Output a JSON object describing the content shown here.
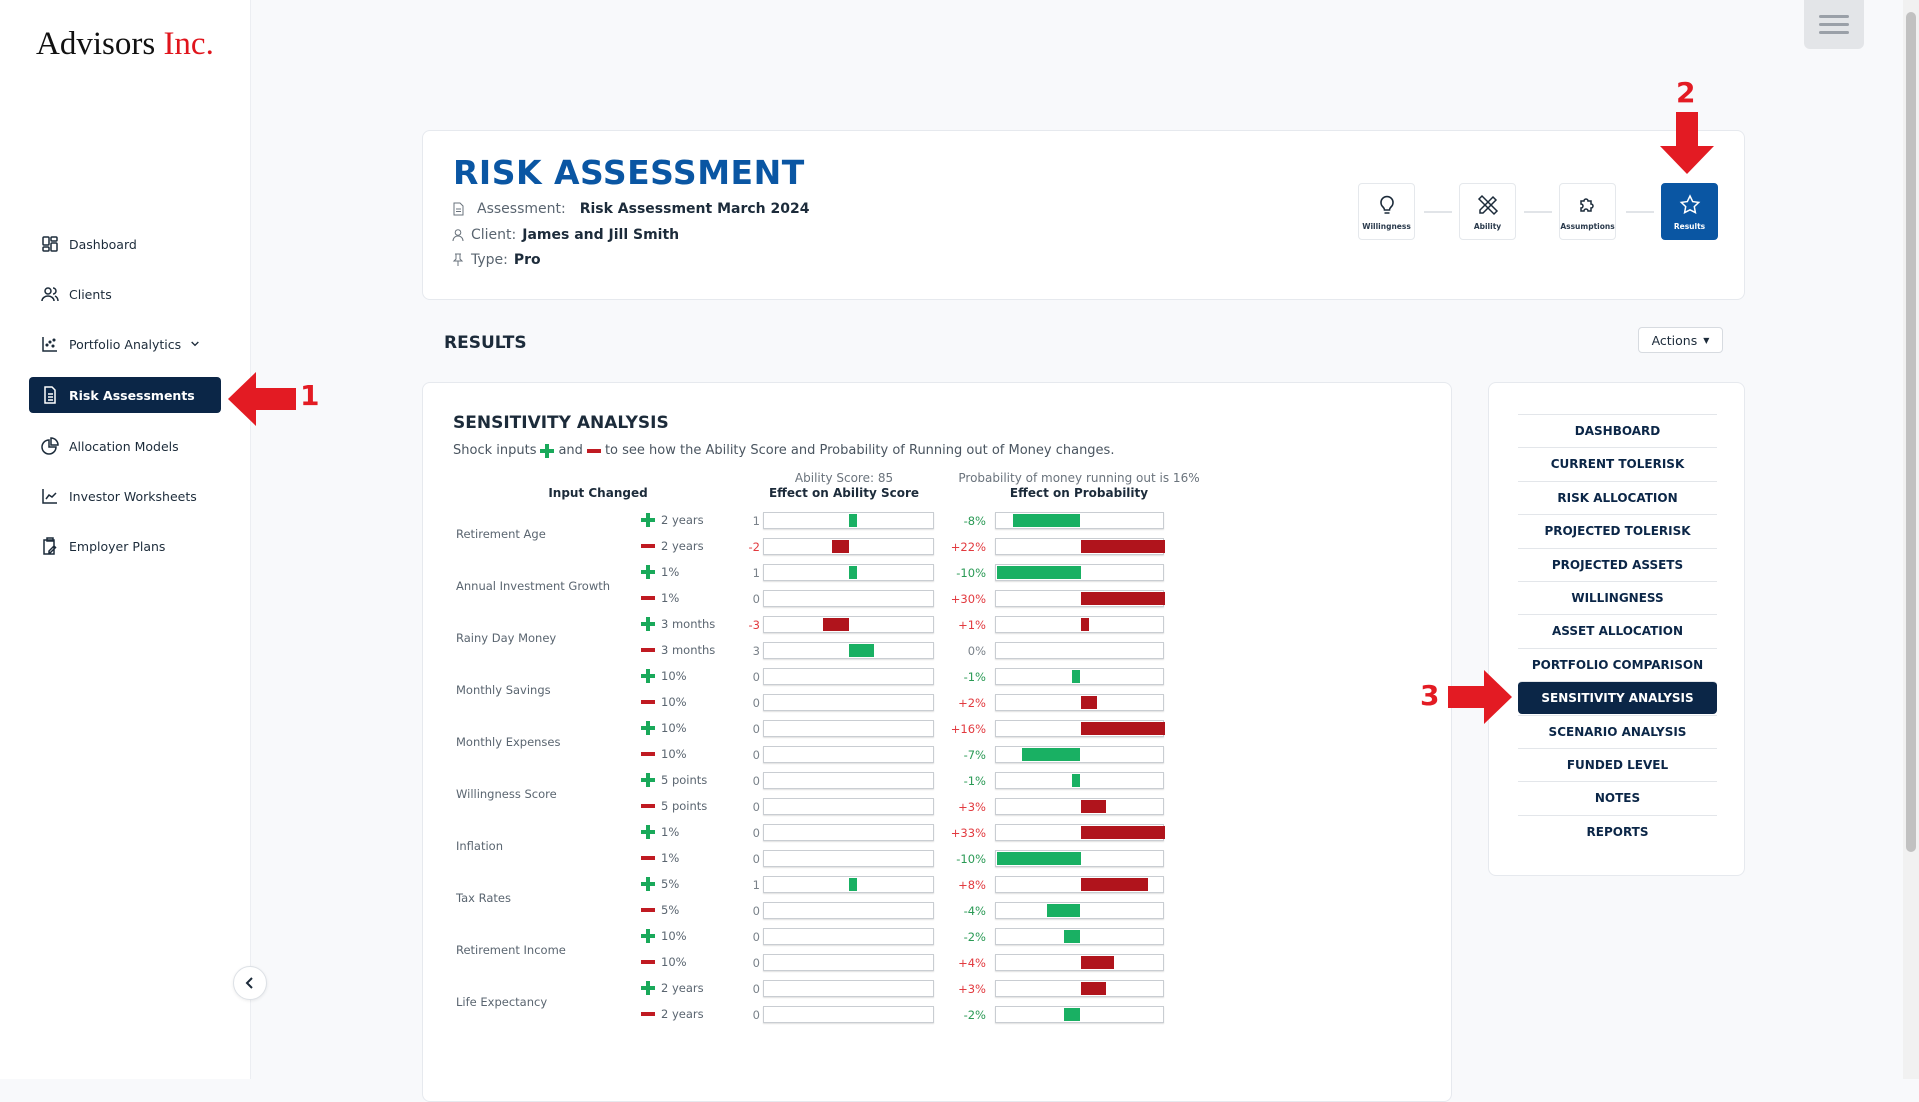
{
  "logo": {
    "text1": "Advisors",
    "text2": "Inc."
  },
  "sidebar": {
    "items": [
      {
        "label": "Dashboard",
        "icon": "dashboard-icon"
      },
      {
        "label": "Clients",
        "icon": "clients-icon"
      },
      {
        "label": "Portfolio Analytics",
        "icon": "scatter-chart-icon",
        "has_chevron": true
      },
      {
        "label": "Risk Assessments",
        "icon": "document-icon",
        "active": true
      },
      {
        "label": "Allocation Models",
        "icon": "pie-chart-icon"
      },
      {
        "label": "Investor Worksheets",
        "icon": "line-chart-icon"
      },
      {
        "label": "Employer Plans",
        "icon": "clipboard-edit-icon"
      }
    ]
  },
  "header": {
    "title": "RISK ASSESSMENT",
    "assessment_label": "Assessment:",
    "assessment_value": "Risk Assessment March 2024",
    "client_label": "Client:",
    "client_value": "James and Jill Smith",
    "type_label": "Type:",
    "type_value": "Pro",
    "steps": [
      {
        "label": "Willingness",
        "icon": "lightbulb-icon"
      },
      {
        "label": "Ability",
        "icon": "pencil-ruler-icon"
      },
      {
        "label": "Assumptions",
        "icon": "puzzle-icon"
      },
      {
        "label": "Results",
        "icon": "star-icon",
        "active": true
      }
    ]
  },
  "results": {
    "title": "RESULTS",
    "actions_label": "Actions"
  },
  "sensitivity": {
    "title": "SENSITIVITY ANALYSIS",
    "sub_1": "Shock inputs",
    "sub_2": "and",
    "sub_3": "to see how the Ability Score and Probability of Running out of Money changes.",
    "col_input": "Input Changed",
    "ability_score": "Ability Score: 85",
    "col_ability": "Effect on Ability Score",
    "probability_note": "Probability of money running out is 16%",
    "col_prob": "Effect on Probability",
    "colors": {
      "positive": "#19b063",
      "negative": "#b0141c"
    },
    "groups": [
      {
        "label": "Retirement Age",
        "rows": [
          {
            "sign": "+",
            "change": "2 years",
            "ability": 1,
            "prob": -8
          },
          {
            "sign": "-",
            "change": "2 years",
            "ability": -2,
            "prob": 22
          }
        ]
      },
      {
        "label": "Annual Investment Growth",
        "rows": [
          {
            "sign": "+",
            "change": "1%",
            "ability": 1,
            "prob": -10
          },
          {
            "sign": "-",
            "change": "1%",
            "ability": 0,
            "prob": 30
          }
        ]
      },
      {
        "label": "Rainy Day Money",
        "rows": [
          {
            "sign": "+",
            "change": "3 months",
            "ability": -3,
            "prob": 1
          },
          {
            "sign": "-",
            "change": "3 months",
            "ability": 3,
            "prob": 0
          }
        ]
      },
      {
        "label": "Monthly Savings",
        "rows": [
          {
            "sign": "+",
            "change": "10%",
            "ability": 0,
            "prob": -1
          },
          {
            "sign": "-",
            "change": "10%",
            "ability": 0,
            "prob": 2
          }
        ]
      },
      {
        "label": "Monthly Expenses",
        "rows": [
          {
            "sign": "+",
            "change": "10%",
            "ability": 0,
            "prob": 16
          },
          {
            "sign": "-",
            "change": "10%",
            "ability": 0,
            "prob": -7
          }
        ]
      },
      {
        "label": "Willingness Score",
        "rows": [
          {
            "sign": "+",
            "change": "5 points",
            "ability": 0,
            "prob": -1
          },
          {
            "sign": "-",
            "change": "5 points",
            "ability": 0,
            "prob": 3
          }
        ]
      },
      {
        "label": "Inflation",
        "rows": [
          {
            "sign": "+",
            "change": "1%",
            "ability": 0,
            "prob": 33
          },
          {
            "sign": "-",
            "change": "1%",
            "ability": 0,
            "prob": -10
          }
        ]
      },
      {
        "label": "Tax Rates",
        "rows": [
          {
            "sign": "+",
            "change": "5%",
            "ability": 1,
            "prob": 8
          },
          {
            "sign": "-",
            "change": "5%",
            "ability": 0,
            "prob": -4
          }
        ]
      },
      {
        "label": "Retirement Income",
        "rows": [
          {
            "sign": "+",
            "change": "10%",
            "ability": 0,
            "prob": -2
          },
          {
            "sign": "-",
            "change": "10%",
            "ability": 0,
            "prob": 4
          }
        ]
      },
      {
        "label": "Life Expectancy",
        "rows": [
          {
            "sign": "+",
            "change": "2 years",
            "ability": 0,
            "prob": 3
          },
          {
            "sign": "-",
            "change": "2 years",
            "ability": 0,
            "prob": -2
          }
        ]
      }
    ]
  },
  "right_nav": {
    "items": [
      "DASHBOARD",
      "CURRENT TOLERISK",
      "RISK ALLOCATION",
      "PROJECTED TOLERISK",
      "PROJECTED ASSETS",
      "WILLINGNESS",
      "ASSET ALLOCATION",
      "PORTFOLIO COMPARISON",
      "SENSITIVITY ANALYSIS",
      "SCENARIO ANALYSIS",
      "FUNDED LEVEL",
      "NOTES",
      "REPORTS"
    ],
    "active_index": 8
  },
  "annotations": [
    "1",
    "2",
    "3"
  ]
}
